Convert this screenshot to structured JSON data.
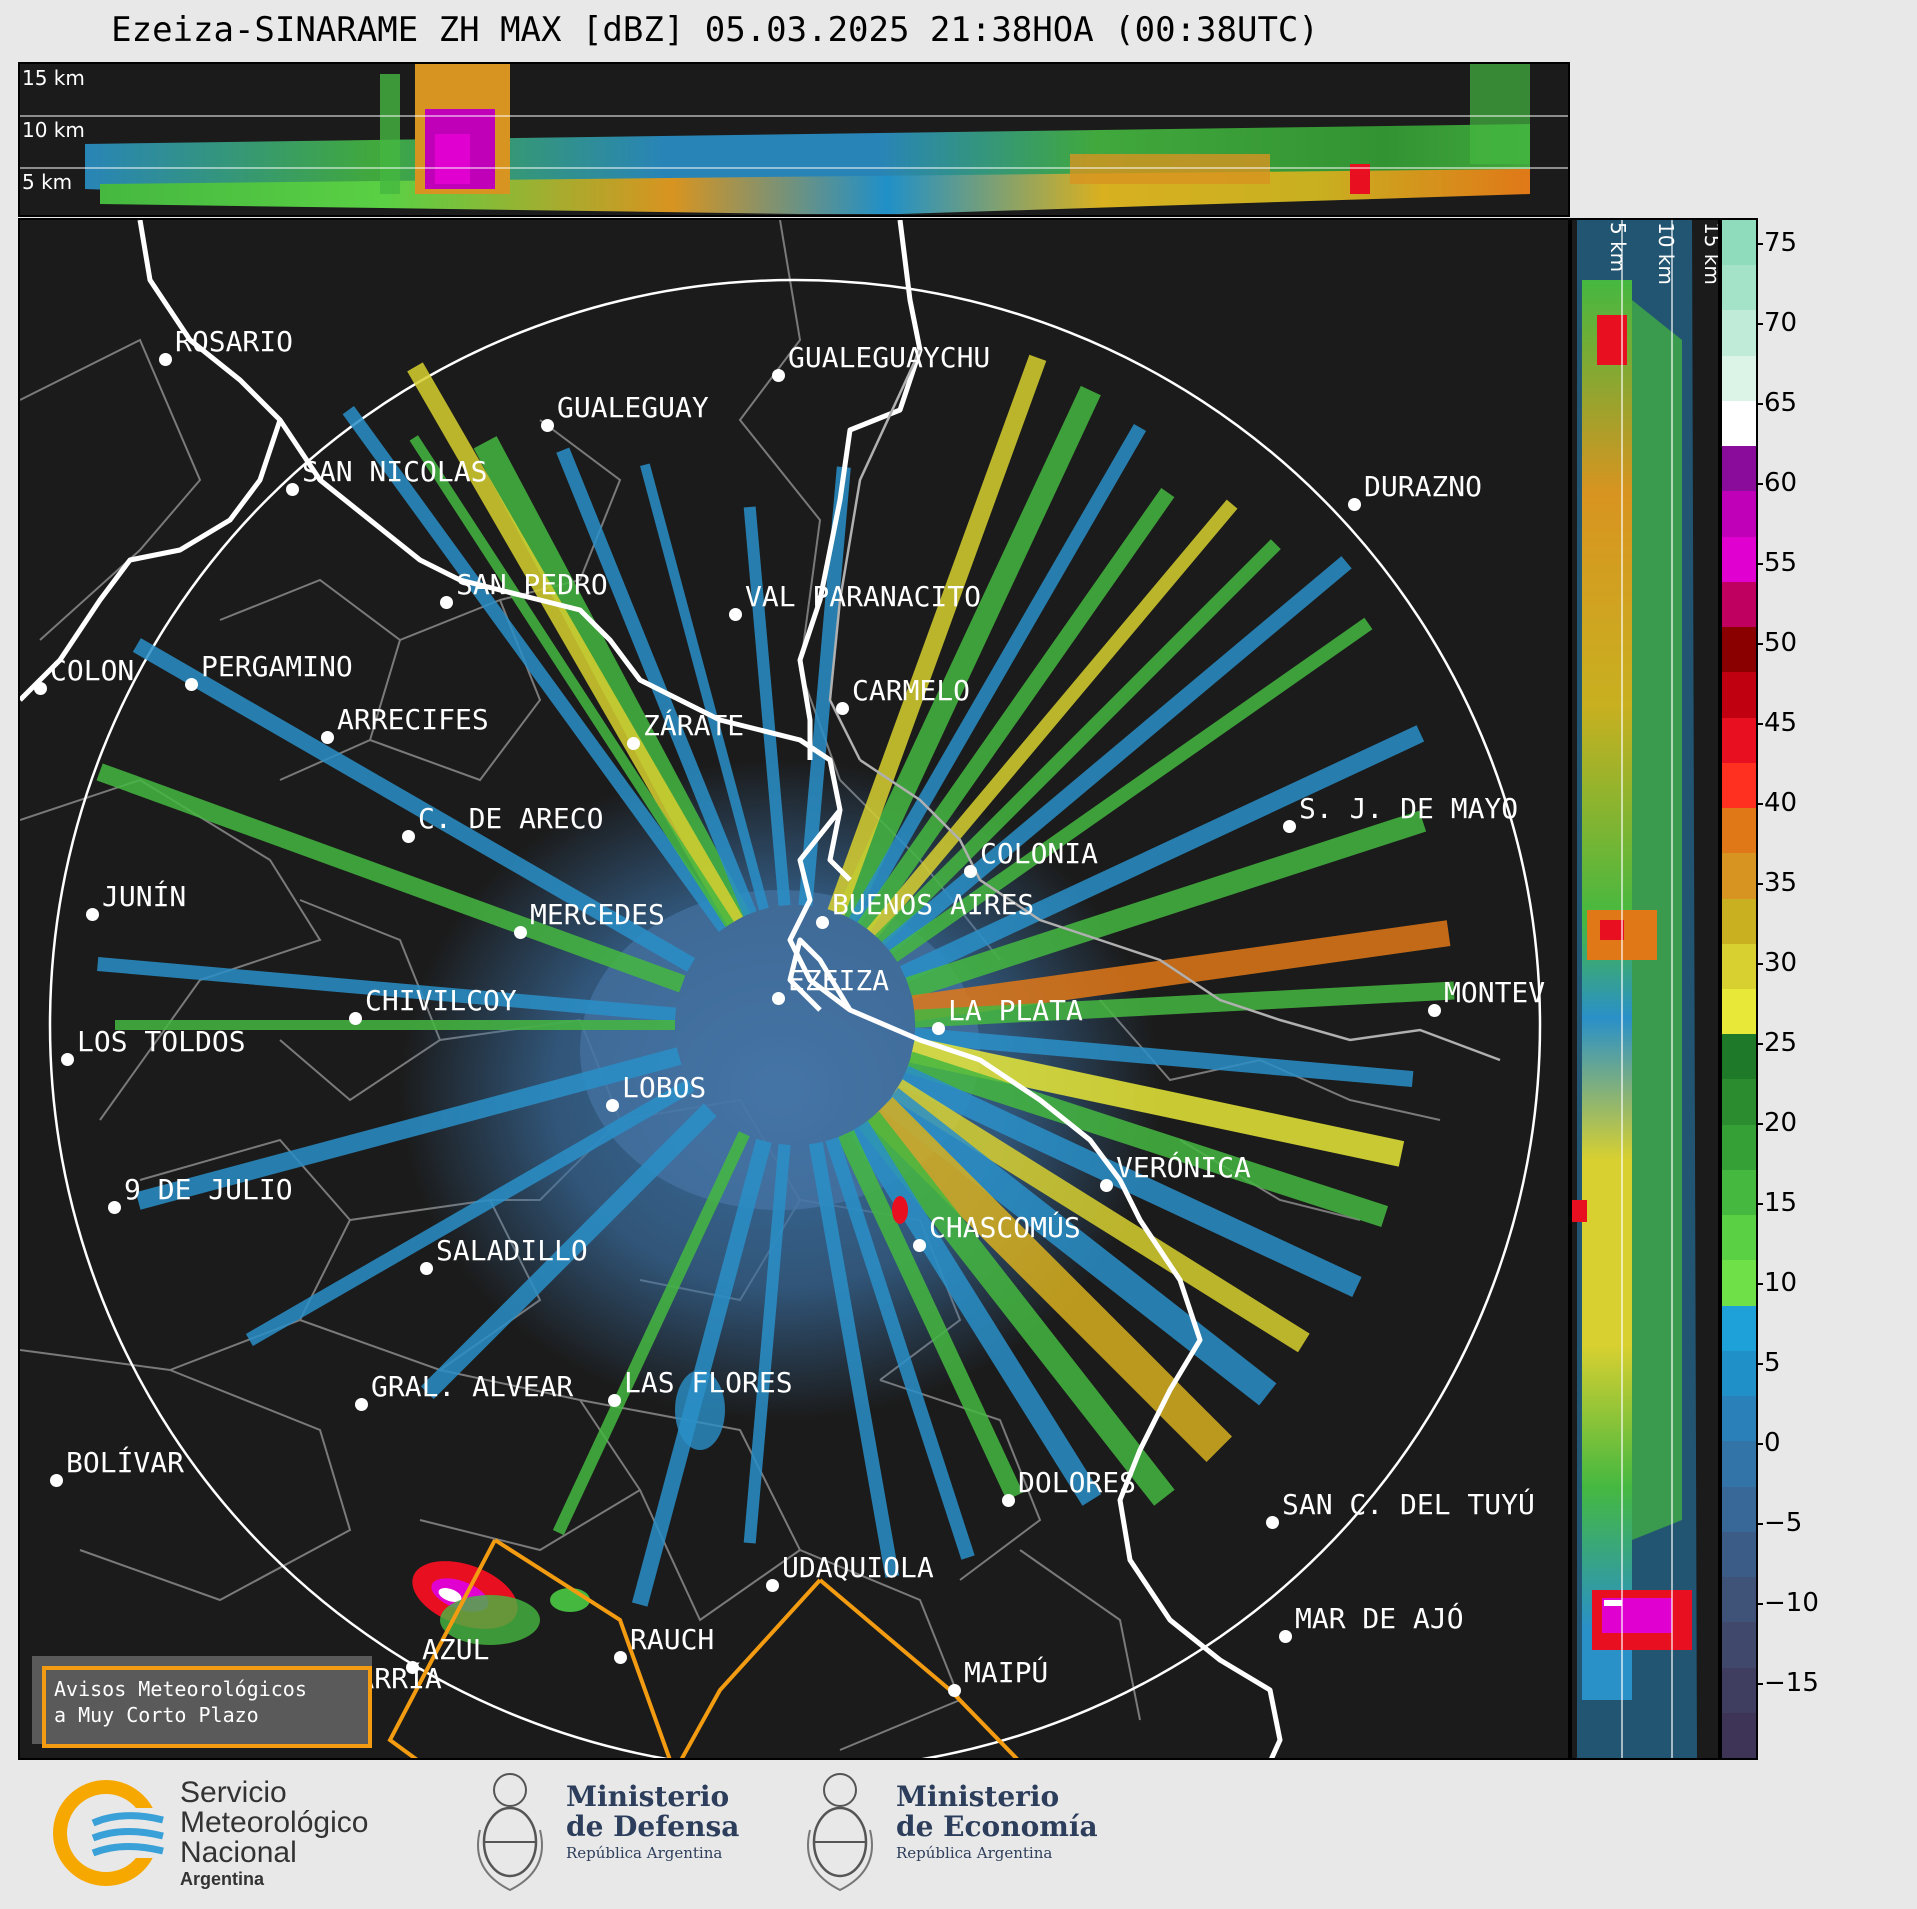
{
  "title": "Ezeiza-SINARAME ZH MAX [dBZ] 05.03.2025 21:38HOA (00:38UTC)",
  "top_panel": {
    "heights": [
      "15 km",
      "10 km",
      "5 km"
    ]
  },
  "side_panel": {
    "heights": [
      "5 km",
      "10 km",
      "15 km"
    ]
  },
  "cities": [
    {
      "name": "ROSARIO"
    },
    {
      "name": "GUALEGUAYCHU"
    },
    {
      "name": "GUALEGUAY"
    },
    {
      "name": "SAN NICOLAS"
    },
    {
      "name": "DURAZNO"
    },
    {
      "name": "SAN PEDRO"
    },
    {
      "name": "VAL PARANACITO"
    },
    {
      "name": "COLON"
    },
    {
      "name": "PERGAMINO"
    },
    {
      "name": "CARMELO"
    },
    {
      "name": "ARRECIFES"
    },
    {
      "name": "ZÁRATE"
    },
    {
      "name": "S. J. DE MAYO"
    },
    {
      "name": "C. DE ARECO"
    },
    {
      "name": "COLONIA"
    },
    {
      "name": "JUNÍN"
    },
    {
      "name": "BUENOS AIRES"
    },
    {
      "name": "MERCEDES"
    },
    {
      "name": "MONTEV"
    },
    {
      "name": "EZEIZA"
    },
    {
      "name": "CHIVILCOY"
    },
    {
      "name": "LA PLATA"
    },
    {
      "name": "LOS TOLDOS"
    },
    {
      "name": "LOBOS"
    },
    {
      "name": "VERÓNICA"
    },
    {
      "name": "9 DE JULIO"
    },
    {
      "name": "CHASCOMÚS"
    },
    {
      "name": "SALADILLO"
    },
    {
      "name": "GRAL. ALVEAR"
    },
    {
      "name": "LAS FLORES"
    },
    {
      "name": "BOLÍVAR"
    },
    {
      "name": "DOLORES"
    },
    {
      "name": "SAN C. DEL TUYÚ"
    },
    {
      "name": "UDAQUIOLA"
    },
    {
      "name": "RAUCH"
    },
    {
      "name": "MAR DE AJÓ"
    },
    {
      "name": "AZUL"
    },
    {
      "name": "OLAVARRÍA"
    },
    {
      "name": "MAIPÚ"
    }
  ],
  "colorbar": {
    "ticks": [
      "75",
      "70",
      "65",
      "60",
      "55",
      "50",
      "45",
      "40",
      "35",
      "30",
      "25",
      "20",
      "15",
      "10",
      "5",
      "0",
      "−5",
      "−10",
      "−15"
    ],
    "colors": [
      "#8fdcbc",
      "#a5e3c8",
      "#c0ebd8",
      "#dcf3e8",
      "#ffffff",
      "#8a0c9a",
      "#c000b8",
      "#e000d0",
      "#c00060",
      "#8a0000",
      "#c00010",
      "#e81020",
      "#ff3020",
      "#e07818",
      "#d89420",
      "#c8b020",
      "#d8d030",
      "#e8e838",
      "#1e7a28",
      "#2a8c2e",
      "#35a035",
      "#45b840",
      "#5ad044",
      "#70e048",
      "#1ea0d8",
      "#2090c8",
      "#2a80b8",
      "#3274a8",
      "#386898",
      "#3c5c88",
      "#3f5278",
      "#40486c",
      "#3f3e60",
      "#3d3458"
    ]
  },
  "aviso": {
    "line1": "Avisos Meteorológicos",
    "line2": "a Muy Corto Plazo"
  },
  "logos": {
    "smn": {
      "line1": "Servicio",
      "line2": "Meteorológico",
      "line3": "Nacional",
      "line4": "Argentina"
    },
    "defensa": {
      "line1": "Ministerio",
      "line2": "de Defensa",
      "line3": "República Argentina"
    },
    "economia": {
      "line1": "Ministerio",
      "line2": "de Economía",
      "line3": "República Argentina"
    }
  }
}
